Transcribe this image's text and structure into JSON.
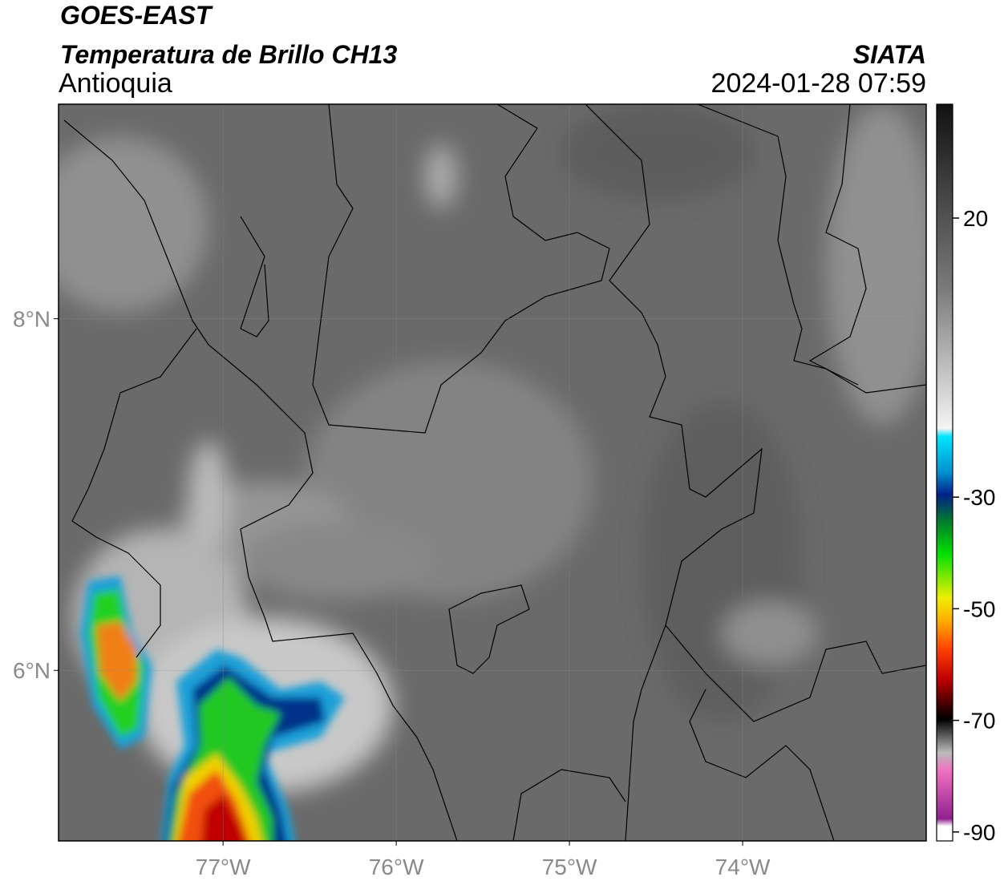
{
  "header": {
    "title": "GOES-EAST",
    "subtitle": "Temperatura de Brillo CH13",
    "region": "Antioquia",
    "source": "SIATA",
    "datetime": "2024-01-28 07:59"
  },
  "map": {
    "xlim": [
      -77.95,
      -72.94
    ],
    "ylim": [
      5.03,
      9.22
    ],
    "xticks": [
      {
        "value": -77,
        "label": "77°W"
      },
      {
        "value": -76,
        "label": "76°W"
      },
      {
        "value": -75,
        "label": "75°W"
      },
      {
        "value": -74,
        "label": "74°W"
      }
    ],
    "yticks": [
      {
        "value": 8,
        "label": "8°N"
      },
      {
        "value": 6,
        "label": "6°N"
      }
    ],
    "grid": true
  },
  "colorbar": {
    "clim": [
      -91.6,
      40.4
    ],
    "ticks": [
      20,
      -30,
      -50,
      -70,
      -90
    ]
  }
}
